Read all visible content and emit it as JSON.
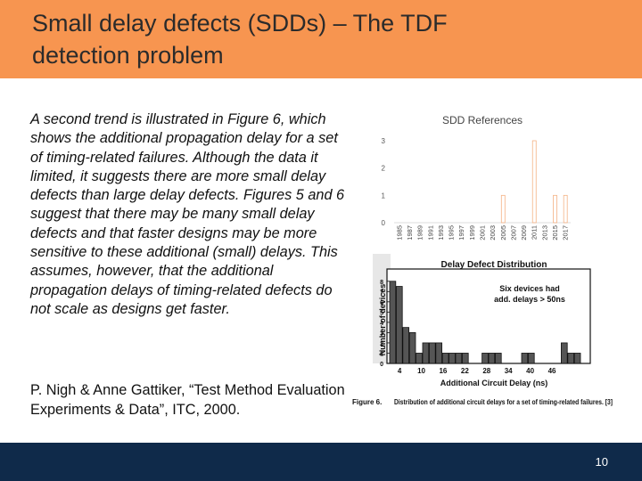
{
  "slide": {
    "title_line1": "Small delay defects (SDDs) – The TDF",
    "title_line2": "detection problem",
    "body_text": "A second trend is illustrated in Figure 6, which shows the additional propagation delay for a set of timing-related failures. Although the data it limited, it suggests there are more small delay defects than large delay defects. Figures 5 and 6 suggest that there may be many small delay defects and that faster designs may be more sensitive to these additional (small) delays. This assumes, however, that the additional propagation delays of timing-related defects do not scale as designs get faster.",
    "citation": "P. Nigh & Anne Gattiker, “Test Method Evaluation Experiments & Data”, ITC, 2000.",
    "page_number": "10",
    "colors": {
      "header": "#f79550",
      "footer": "#0f2a4a",
      "bar_outline": "#f4b183"
    }
  },
  "chart_data": [
    {
      "type": "bar",
      "title": "SDD References",
      "categories": [
        "1985",
        "1987",
        "1989",
        "1991",
        "1993",
        "1995",
        "1997",
        "1999",
        "2001",
        "2003",
        "2005",
        "2007",
        "2009",
        "2011",
        "2013",
        "2015",
        "2017"
      ],
      "values": [
        0,
        0,
        0,
        0,
        0,
        0,
        0,
        0,
        0,
        0,
        1,
        0,
        0,
        3,
        0,
        1,
        1
      ],
      "yticks": [
        0,
        1,
        2,
        3
      ],
      "ylim": [
        0,
        3
      ]
    },
    {
      "type": "bar",
      "title": "Delay Defect Distribution",
      "xlabel": "Additional Circuit Delay (ns)",
      "ylabel": "Number of devices",
      "xticks": [
        "4",
        "10",
        "16",
        "22",
        "28",
        "34",
        "40",
        "46"
      ],
      "yticks": [
        "0",
        "1",
        "2",
        "3",
        "4",
        "5",
        "6",
        "7",
        "8"
      ],
      "values": [
        8,
        7.5,
        3.5,
        3,
        1,
        2,
        2,
        2,
        1,
        1,
        1,
        1,
        0,
        0,
        1,
        1,
        1,
        0,
        0,
        0,
        1,
        1,
        0,
        0,
        0,
        0,
        2,
        1,
        1,
        0
      ],
      "ylim": [
        0,
        8.5
      ],
      "annotation_line1": "Six devices had",
      "annotation_line2": "add. delays > 50ns",
      "caption_label": "Figure 6.",
      "caption_text": "Distribution of additional circuit delays for a set of timing-related failures. [3]"
    }
  ]
}
